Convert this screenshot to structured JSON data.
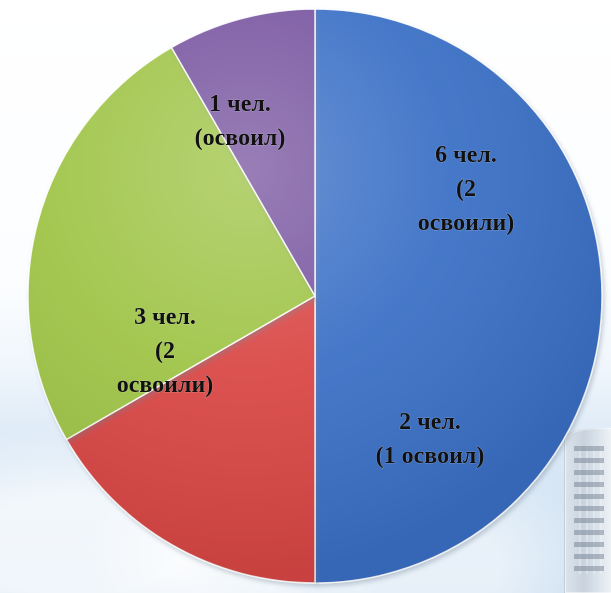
{
  "chart_data": {
    "type": "pie",
    "slices": [
      {
        "value": 6,
        "label_lines": [
          "6 чел.",
          "(2",
          "освоили)"
        ],
        "color": "#3b70c6"
      },
      {
        "value": 2,
        "label_lines": [
          "2 чел.",
          "(1 освоил)"
        ],
        "color": "#d94744"
      },
      {
        "value": 3,
        "label_lines": [
          "3 чел.",
          "(2",
          "освоили)"
        ],
        "color": "#9fc446"
      },
      {
        "value": 1,
        "label_lines": [
          "1 чел.",
          "(освоил)"
        ],
        "color": "#7854a0"
      }
    ]
  },
  "colors": {
    "background_top": "#ffffff",
    "background_bottom": "#cfe1f2"
  }
}
